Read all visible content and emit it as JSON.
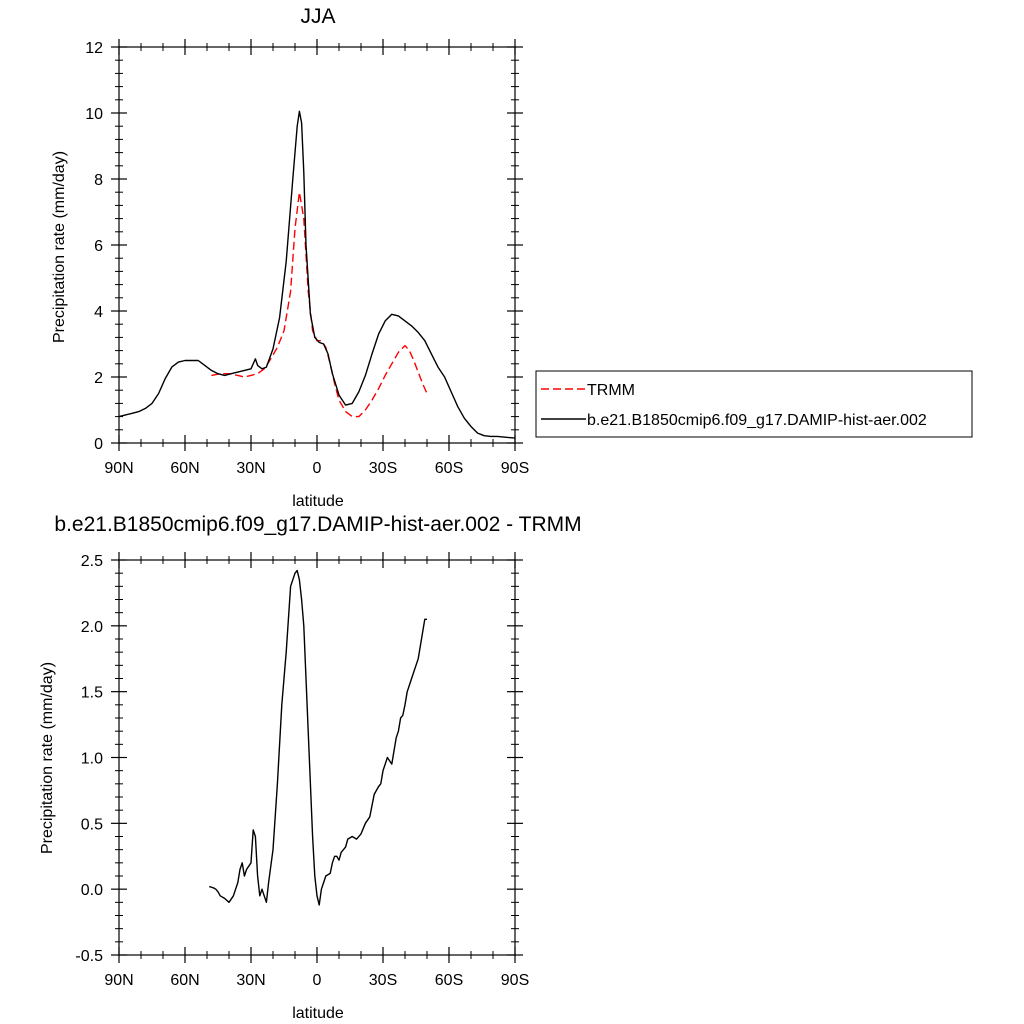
{
  "chart_data": [
    {
      "type": "line",
      "title": "JJA",
      "xlabel": "latitude",
      "ylabel": "Precipitation rate (mm/day)",
      "xlim": [
        90,
        -90
      ],
      "ylim": [
        0,
        12
      ],
      "x_ticks": [
        {
          "value": 90,
          "label": "90N"
        },
        {
          "value": 60,
          "label": "60N"
        },
        {
          "value": 30,
          "label": "30N"
        },
        {
          "value": 0,
          "label": "0"
        },
        {
          "value": -30,
          "label": "30S"
        },
        {
          "value": -60,
          "label": "60S"
        },
        {
          "value": -90,
          "label": "90S"
        }
      ],
      "y_ticks": [
        {
          "value": 0,
          "label": "0"
        },
        {
          "value": 2,
          "label": "2"
        },
        {
          "value": 4,
          "label": "4"
        },
        {
          "value": 6,
          "label": "6"
        },
        {
          "value": 8,
          "label": "8"
        },
        {
          "value": 10,
          "label": "10"
        },
        {
          "value": 12,
          "label": "12"
        }
      ],
      "legend_position": "right",
      "series": [
        {
          "name": "TRMM",
          "color": "#ff0000",
          "dash": "dashed",
          "x": [
            48,
            44,
            40,
            36,
            33,
            30,
            27,
            24,
            21,
            18,
            15,
            12,
            10,
            8,
            6,
            4,
            2,
            0,
            -2,
            -4,
            -6,
            -8,
            -10,
            -13,
            -16,
            -19,
            -22,
            -25,
            -28,
            -31,
            -34,
            -37,
            -40,
            -42,
            -44,
            -46,
            -48,
            -50
          ],
          "y": [
            2.05,
            2.1,
            2.1,
            2.05,
            2.0,
            2.05,
            2.1,
            2.25,
            2.55,
            2.9,
            3.4,
            4.6,
            6.5,
            7.6,
            6.8,
            4.6,
            3.4,
            3.1,
            3.1,
            2.9,
            2.4,
            1.8,
            1.3,
            0.95,
            0.8,
            0.8,
            1.0,
            1.3,
            1.65,
            2.05,
            2.4,
            2.75,
            2.95,
            2.8,
            2.5,
            2.15,
            1.8,
            1.5
          ]
        },
        {
          "name": "b.e21.B1850cmip6.f09_g17.DAMIP-hist-aer.002",
          "color": "#000000",
          "dash": "solid",
          "x": [
            90,
            87,
            84,
            81,
            78,
            75,
            72,
            69,
            66,
            63,
            60,
            57,
            54,
            51,
            48,
            45,
            42,
            39,
            36,
            33,
            30,
            28,
            27,
            25,
            23,
            20,
            17,
            14,
            11,
            9,
            8,
            7,
            6,
            5,
            3,
            1,
            -1,
            -3,
            -5,
            -7,
            -10,
            -13,
            -16,
            -19,
            -22,
            -25,
            -28,
            -31,
            -34,
            -37,
            -40,
            -43,
            -46,
            -49,
            -52,
            -55,
            -58,
            -61,
            -64,
            -67,
            -70,
            -73,
            -76,
            -79,
            -82,
            -85,
            -88,
            -90
          ],
          "y": [
            0.8,
            0.85,
            0.9,
            0.95,
            1.05,
            1.2,
            1.5,
            1.95,
            2.3,
            2.45,
            2.5,
            2.5,
            2.5,
            2.35,
            2.2,
            2.1,
            2.05,
            2.1,
            2.15,
            2.2,
            2.25,
            2.55,
            2.35,
            2.25,
            2.3,
            2.85,
            3.8,
            5.5,
            8.0,
            9.6,
            10.05,
            9.7,
            8.2,
            6.0,
            3.9,
            3.2,
            3.05,
            3.0,
            2.7,
            2.1,
            1.45,
            1.15,
            1.2,
            1.55,
            2.05,
            2.7,
            3.3,
            3.7,
            3.9,
            3.85,
            3.7,
            3.55,
            3.35,
            3.1,
            2.7,
            2.3,
            2.0,
            1.55,
            1.1,
            0.75,
            0.5,
            0.3,
            0.22,
            0.2,
            0.2,
            0.18,
            0.16,
            0.15
          ]
        }
      ]
    },
    {
      "type": "line",
      "title": "b.e21.B1850cmip6.f09_g17.DAMIP-hist-aer.002 - TRMM",
      "xlabel": "latitude",
      "ylabel": "Precipitation rate (mm/day)",
      "xlim": [
        90,
        -90
      ],
      "ylim": [
        -0.5,
        2.5
      ],
      "x_ticks": [
        {
          "value": 90,
          "label": "90N"
        },
        {
          "value": 60,
          "label": "60N"
        },
        {
          "value": 30,
          "label": "30N"
        },
        {
          "value": 0,
          "label": "0"
        },
        {
          "value": -30,
          "label": "30S"
        },
        {
          "value": -60,
          "label": "60S"
        },
        {
          "value": -90,
          "label": "90S"
        }
      ],
      "y_ticks": [
        {
          "value": -0.5,
          "label": "-0.5"
        },
        {
          "value": 0.0,
          "label": "0.0"
        },
        {
          "value": 0.5,
          "label": "0.5"
        },
        {
          "value": 1.0,
          "label": "1.0"
        },
        {
          "value": 1.5,
          "label": "1.5"
        },
        {
          "value": 2.0,
          "label": "2.0"
        },
        {
          "value": 2.5,
          "label": "2.5"
        }
      ],
      "series": [
        {
          "color": "#000000",
          "dash": "solid",
          "x": [
            49,
            47,
            46,
            45,
            44,
            42,
            40,
            38,
            36,
            35,
            34,
            33,
            32,
            30,
            29,
            28,
            27,
            26,
            25,
            24,
            23,
            22,
            20,
            18,
            16,
            14,
            12,
            11,
            10,
            9,
            8,
            7,
            6,
            5,
            4,
            3,
            2,
            1,
            0,
            -1,
            -2,
            -3,
            -4,
            -6,
            -7,
            -8,
            -9,
            -10,
            -11,
            -12,
            -13,
            -14,
            -16,
            -18,
            -20,
            -22,
            -24,
            -26,
            -28,
            -29,
            -30,
            -31,
            -32,
            -34,
            -35,
            -36,
            -37,
            -38,
            -39,
            -40,
            -41,
            -42,
            -43,
            -44,
            -45,
            -46,
            -47,
            -48,
            -49,
            -50
          ],
          "y": [
            0.02,
            0.01,
            0.0,
            -0.02,
            -0.05,
            -0.07,
            -0.1,
            -0.05,
            0.05,
            0.15,
            0.2,
            0.1,
            0.15,
            0.2,
            0.45,
            0.4,
            0.1,
            -0.05,
            0.0,
            -0.05,
            -0.1,
            0.05,
            0.3,
            0.8,
            1.4,
            1.8,
            2.3,
            2.35,
            2.4,
            2.42,
            2.35,
            2.2,
            2.0,
            1.6,
            1.2,
            0.8,
            0.4,
            0.1,
            -0.05,
            -0.12,
            0.0,
            0.05,
            0.1,
            0.12,
            0.2,
            0.25,
            0.25,
            0.22,
            0.28,
            0.3,
            0.32,
            0.38,
            0.4,
            0.38,
            0.42,
            0.5,
            0.55,
            0.72,
            0.78,
            0.8,
            0.9,
            0.95,
            1.0,
            0.95,
            1.05,
            1.15,
            1.2,
            1.3,
            1.32,
            1.4,
            1.5,
            1.55,
            1.6,
            1.65,
            1.7,
            1.75,
            1.85,
            1.95,
            2.05,
            2.05
          ]
        }
      ]
    }
  ]
}
